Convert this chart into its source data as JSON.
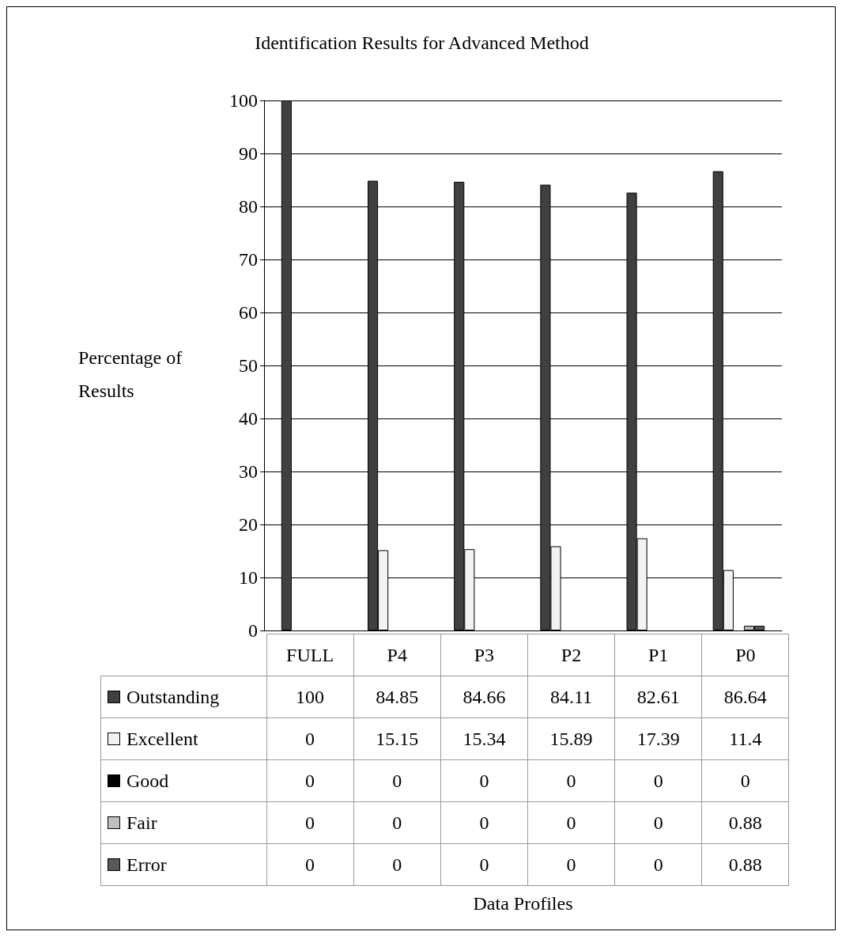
{
  "chart_data": {
    "type": "bar",
    "title": "Identification Results for Advanced Method",
    "annotations": [
      "Data Profiles"
    ],
    "ylabel": "Percentage of Results",
    "categories": [
      "FULL",
      "P4",
      "P3",
      "P2",
      "P1",
      "P0"
    ],
    "series": [
      {
        "name": "Outstanding",
        "color": "#404040",
        "values": [
          100,
          84.85,
          84.66,
          84.11,
          82.61,
          86.64
        ]
      },
      {
        "name": "Excellent",
        "color": "#f2f2f2",
        "values": [
          0,
          15.15,
          15.34,
          15.89,
          17.39,
          11.4
        ]
      },
      {
        "name": "Good",
        "color": "#000000",
        "values": [
          0,
          0,
          0,
          0,
          0,
          0
        ]
      },
      {
        "name": "Fair",
        "color": "#bfbfbf",
        "values": [
          0,
          0,
          0,
          0,
          0,
          0.88
        ]
      },
      {
        "name": "Error",
        "color": "#595959",
        "values": [
          0,
          0,
          0,
          0,
          0,
          0.88
        ]
      }
    ],
    "ylim": [
      0,
      100
    ],
    "yticks": [
      0,
      10,
      20,
      30,
      40,
      50,
      60,
      70,
      80,
      90,
      100
    ],
    "grid": "y",
    "legend": "bottom left",
    "data_labels": true
  }
}
